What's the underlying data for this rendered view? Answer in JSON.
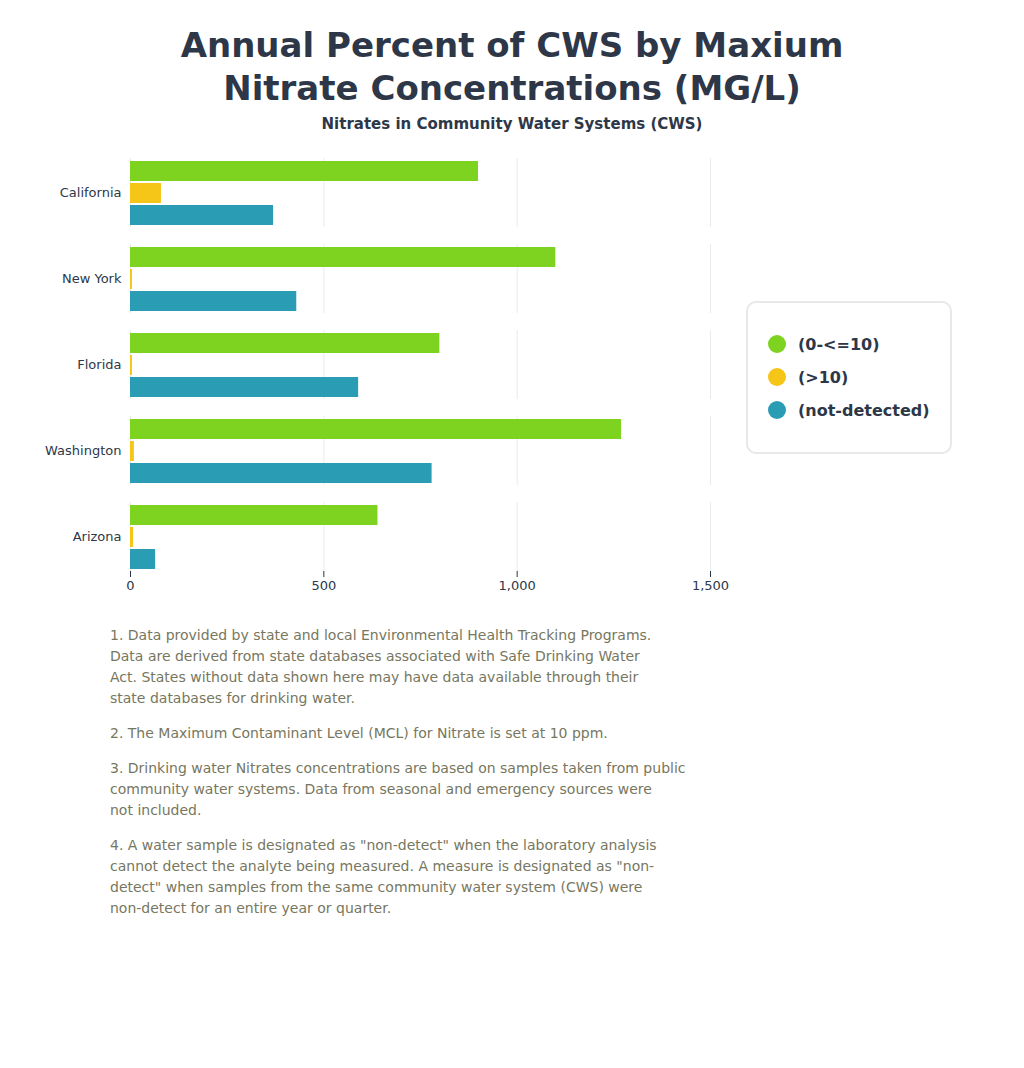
{
  "chart_data": {
    "type": "bar",
    "orientation": "horizontal",
    "title": [
      "Annual Percent of CWS by Maxium",
      "Nitrate Concentrations (MG/L)"
    ],
    "subtitle": "Nitrates in Community Water Systems (CWS)",
    "categories": [
      "California",
      "New York",
      "Florida",
      "Washington",
      "Arizona"
    ],
    "series": [
      {
        "name": "(0-<=10)",
        "color": "#7ed321",
        "values": [
          900,
          1100,
          800,
          1270,
          640
        ]
      },
      {
        "name": "(>10)",
        "color": "#f5c518",
        "values": [
          80,
          5,
          5,
          10,
          8
        ]
      },
      {
        "name": "(not-detected)",
        "color": "#2a9db5",
        "values": [
          370,
          430,
          590,
          780,
          65
        ]
      }
    ],
    "xlim": [
      0,
      1500
    ],
    "xticks": [
      0,
      500,
      {
        "value": 1000,
        "label": "1,000"
      },
      {
        "value": 1500,
        "label": "1,500"
      }
    ],
    "grid": true,
    "legend": "right",
    "annotations": [
      "1. Data provided by state and local Environmental Health Tracking Programs.\nData are derived from state databases associated with Safe Drinking Water\nAct. States without data shown here may have data available through their\nstate databases for drinking water.",
      "2. The Maximum Contaminant Level (MCL) for Nitrate is set at 10 ppm.",
      "3. Drinking water Nitrates concentrations are based on samples taken from public\ncommunity water systems. Data from seasonal and emergency sources were\nnot included.",
      "4. A water sample is designated as \"non-detect\" when the laboratory analysis\ncannot detect the analyte being measured. A measure is designated as \"non-\ndetect\" when samples from the same community water system (CWS) were\nnon-detect for an entire year or quarter."
    ]
  }
}
